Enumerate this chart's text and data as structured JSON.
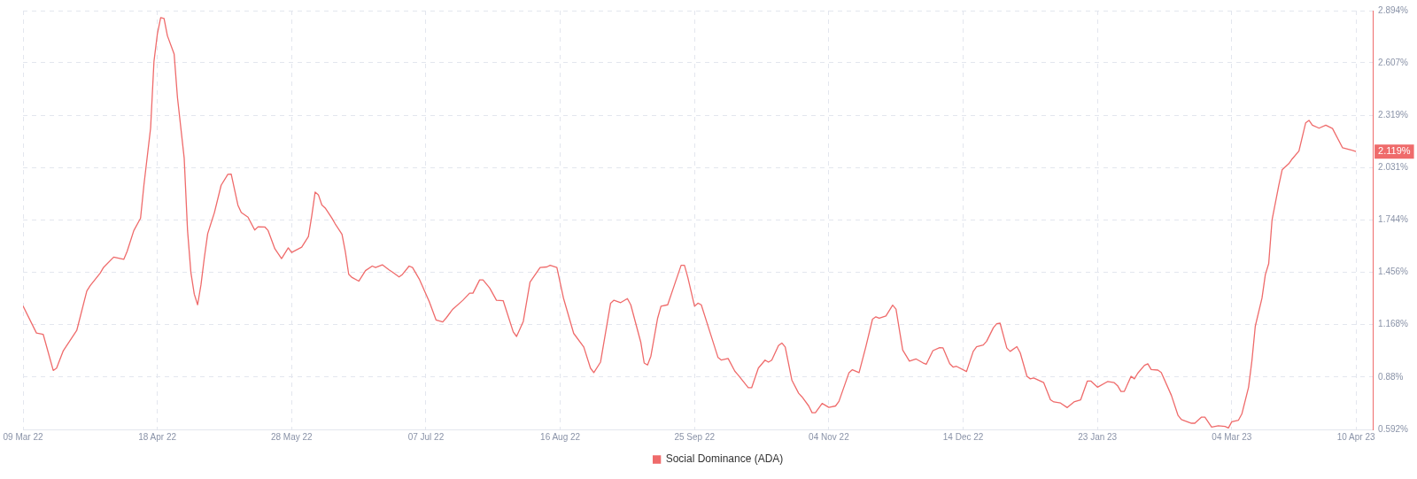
{
  "chart_data": {
    "type": "line",
    "legend": "bottom",
    "grid": true,
    "marker": "none",
    "line_style": "solid",
    "xlim": [
      "2022-03-09",
      "2023-04-15"
    ],
    "xticks": [
      {
        "value": "2022-03-09",
        "label": "09 Mar 22"
      },
      {
        "value": "2022-04-18",
        "label": "18 Apr 22"
      },
      {
        "value": "2022-05-28",
        "label": "28 May 22"
      },
      {
        "value": "2022-07-07",
        "label": "07 Jul 22"
      },
      {
        "value": "2022-08-16",
        "label": "16 Aug 22"
      },
      {
        "value": "2022-09-25",
        "label": "25 Sep 22"
      },
      {
        "value": "2022-11-04",
        "label": "04 Nov 22"
      },
      {
        "value": "2022-12-14",
        "label": "14 Dec 22"
      },
      {
        "value": "2023-01-23",
        "label": "23 Jan 23"
      },
      {
        "value": "2023-03-04",
        "label": "04 Mar 23"
      },
      {
        "value": "2023-04-10",
        "label": "10 Apr 23"
      }
    ],
    "ylim": [
      0.592,
      2.894
    ],
    "yticks": [
      {
        "value": 0.592,
        "label": "0.592%"
      },
      {
        "value": 0.88,
        "label": "0.88%"
      },
      {
        "value": 1.168,
        "label": "1.168%"
      },
      {
        "value": 1.456,
        "label": "1.456%"
      },
      {
        "value": 1.744,
        "label": "1.744%"
      },
      {
        "value": 2.031,
        "label": "2.031%"
      },
      {
        "value": 2.319,
        "label": "2.319%"
      },
      {
        "value": 2.607,
        "label": "2.607%"
      },
      {
        "value": 2.894,
        "label": "2.894%"
      }
    ],
    "annotations": [
      {
        "text": "2.119%",
        "x": "2023-04-10",
        "y": 2.119
      }
    ],
    "series": [
      {
        "name": "Social Dominance (ADA)",
        "color": "#ef6b6b",
        "x": [
          "2022-03-09",
          "2022-03-13",
          "2022-03-15",
          "2022-03-18",
          "2022-03-19",
          "2022-03-21",
          "2022-03-25",
          "2022-03-28",
          "2022-03-29",
          "2022-04-01",
          "2022-04-02",
          "2022-04-05",
          "2022-04-08",
          "2022-04-09",
          "2022-04-11",
          "2022-04-13",
          "2022-04-14",
          "2022-04-16",
          "2022-04-17",
          "2022-04-18",
          "2022-04-19",
          "2022-04-20",
          "2022-04-21",
          "2022-04-23",
          "2022-04-24",
          "2022-04-26",
          "2022-04-27",
          "2022-04-28",
          "2022-04-29",
          "2022-04-30",
          "2022-05-01",
          "2022-05-02",
          "2022-05-03",
          "2022-05-05",
          "2022-05-07",
          "2022-05-09",
          "2022-05-10",
          "2022-05-12",
          "2022-05-13",
          "2022-05-15",
          "2022-05-17",
          "2022-05-18",
          "2022-05-20",
          "2022-05-21",
          "2022-05-23",
          "2022-05-25",
          "2022-05-27",
          "2022-05-28",
          "2022-05-31",
          "2022-06-02",
          "2022-06-03",
          "2022-06-04",
          "2022-06-05",
          "2022-06-06",
          "2022-06-07",
          "2022-06-09",
          "2022-06-10",
          "2022-06-12",
          "2022-06-13",
          "2022-06-14",
          "2022-06-15",
          "2022-06-17",
          "2022-06-19",
          "2022-06-21",
          "2022-06-22",
          "2022-06-24",
          "2022-06-26",
          "2022-06-27",
          "2022-06-29",
          "2022-06-30",
          "2022-07-02",
          "2022-07-03",
          "2022-07-05",
          "2022-07-08",
          "2022-07-10",
          "2022-07-12",
          "2022-07-13",
          "2022-07-15",
          "2022-07-18",
          "2022-07-20",
          "2022-07-21",
          "2022-07-23",
          "2022-07-24",
          "2022-07-26",
          "2022-07-28",
          "2022-07-30",
          "2022-08-02",
          "2022-08-03",
          "2022-08-05",
          "2022-08-07",
          "2022-08-10",
          "2022-08-12",
          "2022-08-13",
          "2022-08-15",
          "2022-08-17",
          "2022-08-20",
          "2022-08-23",
          "2022-08-25",
          "2022-08-26",
          "2022-08-28",
          "2022-08-31",
          "2022-09-01",
          "2022-09-03",
          "2022-09-05",
          "2022-09-06",
          "2022-09-09",
          "2022-09-10",
          "2022-09-11",
          "2022-09-12",
          "2022-09-14",
          "2022-09-15",
          "2022-09-17",
          "2022-09-19",
          "2022-09-21",
          "2022-09-22",
          "2022-09-23",
          "2022-09-25",
          "2022-09-26",
          "2022-09-27",
          "2022-09-29",
          "2022-10-02",
          "2022-10-03",
          "2022-10-05",
          "2022-10-07",
          "2022-10-08",
          "2022-10-11",
          "2022-10-12",
          "2022-10-14",
          "2022-10-16",
          "2022-10-17",
          "2022-10-18",
          "2022-10-20",
          "2022-10-21",
          "2022-10-22",
          "2022-10-24",
          "2022-10-26",
          "2022-10-27",
          "2022-10-29",
          "2022-10-30",
          "2022-10-31",
          "2022-11-02",
          "2022-11-04",
          "2022-11-06",
          "2022-11-07",
          "2022-11-10",
          "2022-11-11",
          "2022-11-13",
          "2022-11-15",
          "2022-11-17",
          "2022-11-18",
          "2022-11-19",
          "2022-11-21",
          "2022-11-23",
          "2022-11-24",
          "2022-11-26",
          "2022-11-28",
          "2022-11-30",
          "2022-12-02",
          "2022-12-03",
          "2022-12-05",
          "2022-12-07",
          "2022-12-08",
          "2022-12-10",
          "2022-12-11",
          "2022-12-12",
          "2022-12-15",
          "2022-12-17",
          "2022-12-18",
          "2022-12-20",
          "2022-12-21",
          "2022-12-23",
          "2022-12-24",
          "2022-12-25",
          "2022-12-27",
          "2022-12-28",
          "2022-12-30",
          "2022-12-31",
          "2023-01-02",
          "2023-01-03",
          "2023-01-04",
          "2023-01-07",
          "2023-01-09",
          "2023-01-10",
          "2023-01-12",
          "2023-01-14",
          "2023-01-16",
          "2023-01-18",
          "2023-01-20",
          "2023-01-21",
          "2023-01-23",
          "2023-01-26",
          "2023-01-28",
          "2023-01-29",
          "2023-01-30",
          "2023-01-31",
          "2023-02-02",
          "2023-02-03",
          "2023-02-04",
          "2023-02-06",
          "2023-02-07",
          "2023-02-08",
          "2023-02-10",
          "2023-02-11",
          "2023-02-14",
          "2023-02-16",
          "2023-02-17",
          "2023-02-20",
          "2023-02-21",
          "2023-02-23",
          "2023-02-24",
          "2023-02-26",
          "2023-02-28",
          "2023-03-02",
          "2023-03-03",
          "2023-03-04",
          "2023-03-06",
          "2023-03-07",
          "2023-03-09",
          "2023-03-10",
          "2023-03-11",
          "2023-03-13",
          "2023-03-14",
          "2023-03-15",
          "2023-03-16",
          "2023-03-18",
          "2023-03-19",
          "2023-03-21",
          "2023-03-22",
          "2023-03-24",
          "2023-03-26",
          "2023-03-27",
          "2023-03-28",
          "2023-03-30",
          "2023-04-01",
          "2023-04-03",
          "2023-04-06",
          "2023-04-08",
          "2023-04-10"
        ],
        "values": [
          1.271,
          1.122,
          1.115,
          0.916,
          0.929,
          1.025,
          1.136,
          1.353,
          1.382,
          1.452,
          1.483,
          1.539,
          1.527,
          1.57,
          1.685,
          1.753,
          1.934,
          2.249,
          2.615,
          2.764,
          2.856,
          2.851,
          2.756,
          2.656,
          2.416,
          2.083,
          1.685,
          1.454,
          1.336,
          1.277,
          1.387,
          1.536,
          1.668,
          1.784,
          1.934,
          1.994,
          1.995,
          1.825,
          1.784,
          1.759,
          1.688,
          1.706,
          1.705,
          1.685,
          1.585,
          1.531,
          1.59,
          1.565,
          1.594,
          1.652,
          1.767,
          1.897,
          1.88,
          1.826,
          1.809,
          1.753,
          1.721,
          1.665,
          1.568,
          1.445,
          1.427,
          1.407,
          1.465,
          1.49,
          1.482,
          1.497,
          1.469,
          1.457,
          1.43,
          1.444,
          1.49,
          1.482,
          1.419,
          1.294,
          1.194,
          1.183,
          1.204,
          1.253,
          1.302,
          1.341,
          1.341,
          1.414,
          1.414,
          1.369,
          1.302,
          1.3,
          1.128,
          1.103,
          1.186,
          1.402,
          1.482,
          1.485,
          1.494,
          1.482,
          1.311,
          1.12,
          1.045,
          0.929,
          0.904,
          0.962,
          1.286,
          1.302,
          1.289,
          1.311,
          1.277,
          1.07,
          0.957,
          0.946,
          0.995,
          1.203,
          1.269,
          1.277,
          1.386,
          1.494,
          1.494,
          1.427,
          1.269,
          1.286,
          1.277,
          1.161,
          0.987,
          0.973,
          0.982,
          0.912,
          0.891,
          0.821,
          0.821,
          0.929,
          0.973,
          0.962,
          0.973,
          1.053,
          1.067,
          1.045,
          0.862,
          0.791,
          0.771,
          0.721,
          0.684,
          0.684,
          0.735,
          0.713,
          0.721,
          0.746,
          0.904,
          0.92,
          0.904,
          1.045,
          1.198,
          1.211,
          1.203,
          1.216,
          1.275,
          1.253,
          1.028,
          0.967,
          0.979,
          0.958,
          0.95,
          1.025,
          1.042,
          1.04,
          0.953,
          0.935,
          0.939,
          0.91,
          1.021,
          1.047,
          1.056,
          1.077,
          1.151,
          1.173,
          1.176,
          1.039,
          1.021,
          1.047,
          1.013,
          0.884,
          0.87,
          0.875,
          0.849,
          0.755,
          0.743,
          0.737,
          0.712,
          0.743,
          0.755,
          0.858,
          0.858,
          0.824,
          0.855,
          0.849,
          0.832,
          0.801,
          0.801,
          0.884,
          0.87,
          0.901,
          0.944,
          0.953,
          0.921,
          0.918,
          0.905,
          0.78,
          0.669,
          0.646,
          0.626,
          0.626,
          0.66,
          0.66,
          0.605,
          0.612,
          0.608,
          0.6,
          0.634,
          0.643,
          0.677,
          0.824,
          0.97,
          1.159,
          1.314,
          1.443,
          1.503,
          1.744,
          1.933,
          2.019,
          2.053,
          2.079,
          2.122,
          2.277,
          2.291,
          2.264,
          2.248,
          2.264,
          2.246,
          2.14,
          2.131,
          2.119
        ]
      }
    ]
  }
}
